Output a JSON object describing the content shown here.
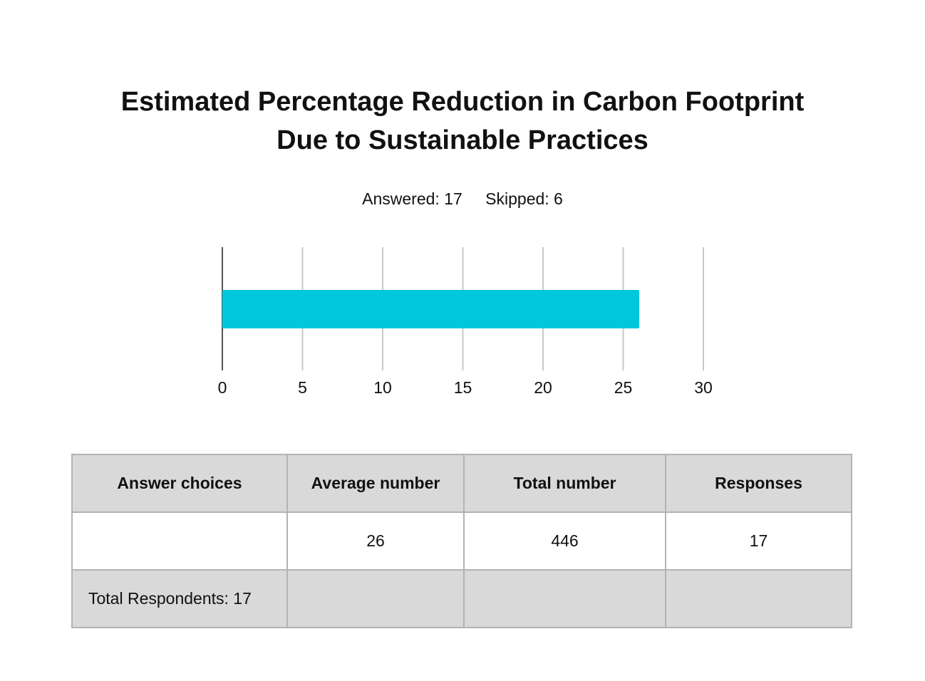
{
  "title_lines": [
    "Estimated Percentage Reduction in Carbon Footprint",
    "Due to Sustainable Practices"
  ],
  "stats": {
    "answered": "Answered: 17",
    "skipped": "Skipped: 6"
  },
  "chart_data": {
    "type": "bar",
    "orientation": "horizontal",
    "title": "Estimated Percentage Reduction in Carbon Footprint Due to Sustainable Practices",
    "categories": [
      ""
    ],
    "values": [
      26
    ],
    "xlim": [
      0,
      30
    ],
    "xticks": [
      0,
      5,
      10,
      15,
      20,
      25,
      30
    ],
    "grid": "vertical",
    "bar_color": "#00c8da",
    "gridline_color": "#c8c8c8",
    "axis_color": "#555555"
  },
  "table": {
    "headers": [
      "Answer choices",
      "Average number",
      "Total number",
      "Responses"
    ],
    "rows": [
      [
        "",
        "26",
        "446",
        "17"
      ]
    ],
    "total_row": [
      "Total Respondents: 17",
      "",
      "",
      ""
    ]
  },
  "colors": {
    "header_bg": "#d9d9d9",
    "border": "#b3b3b3"
  }
}
